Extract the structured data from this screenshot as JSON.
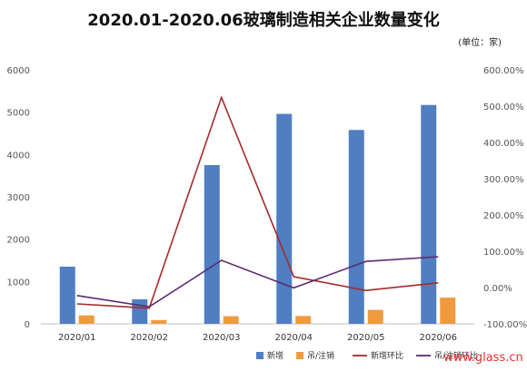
{
  "title": "2020.01-2020.06玻璃制造相关企业数量变化",
  "unit": "(单位：家)",
  "watermark": "www.glass.cn",
  "chart_data": {
    "type": "bar",
    "categories": [
      "2020/01",
      "2020/02",
      "2020/03",
      "2020/04",
      "2020/05",
      "2020/06"
    ],
    "series": [
      {
        "name": "新增",
        "type": "bar",
        "axis": "left",
        "color": "#4f7ec3",
        "values": [
          1350,
          580,
          3750,
          4960,
          4580,
          5170
        ]
      },
      {
        "name": "吊/注销",
        "type": "bar",
        "axis": "left",
        "color": "#f09a3e",
        "values": [
          200,
          90,
          180,
          185,
          330,
          620
        ]
      },
      {
        "name": "新增环比",
        "type": "line",
        "axis": "right",
        "color": "#a52a2a",
        "values": [
          -0.45,
          -0.57,
          5.24,
          0.3,
          -0.08,
          0.13
        ]
      },
      {
        "name": "吊/注销环比",
        "type": "line",
        "axis": "right",
        "color": "#5a2a6e",
        "values": [
          -0.22,
          -0.53,
          0.75,
          -0.01,
          0.72,
          0.85
        ]
      }
    ],
    "ylim": [
      0,
      6000
    ],
    "yticks": [
      "0",
      "1000",
      "2000",
      "3000",
      "4000",
      "5000",
      "6000"
    ],
    "y2lim": [
      -1.0,
      6.0
    ],
    "y2ticks": [
      "-100.00%",
      "0.00%",
      "100.00%",
      "200.00%",
      "300.00%",
      "400.00%",
      "500.00%",
      "600.00%"
    ],
    "legend": "bottom-right",
    "grid": false
  }
}
